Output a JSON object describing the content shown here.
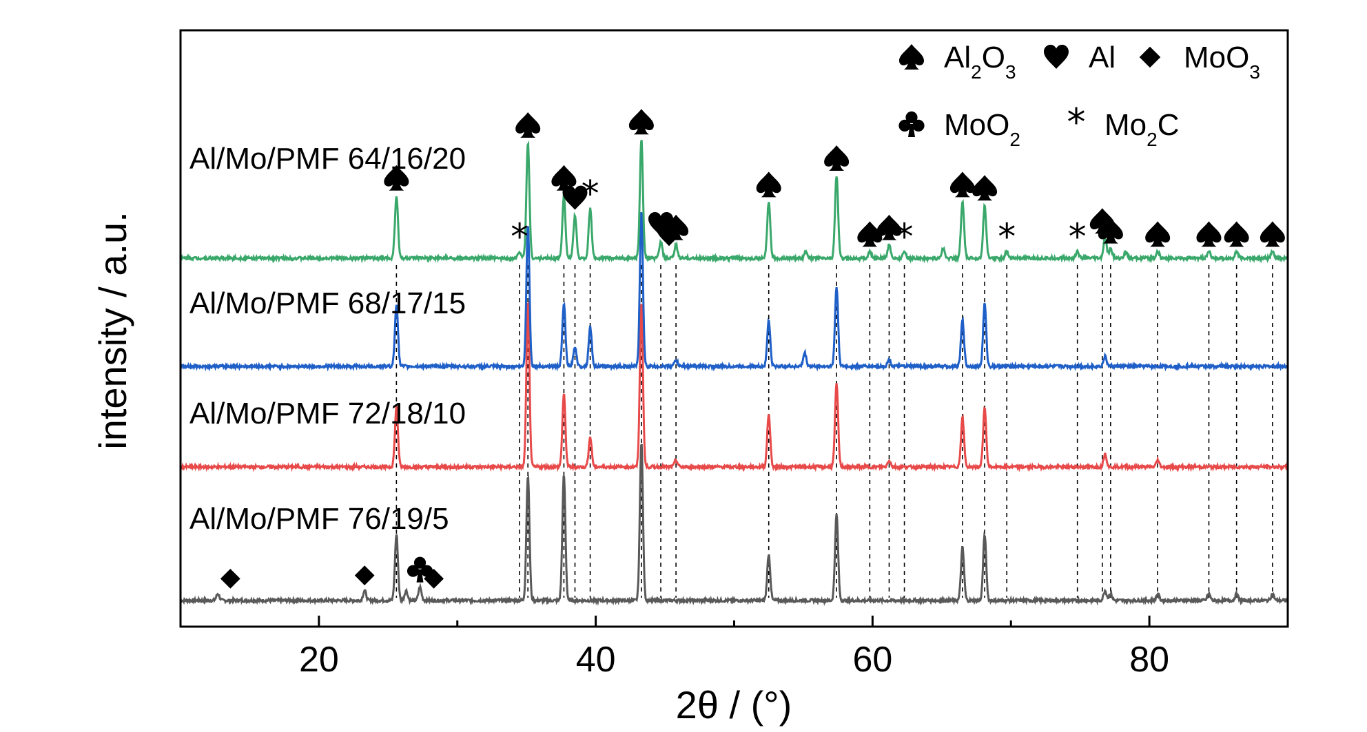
{
  "chart_data": {
    "type": "line",
    "title": "",
    "xlabel": "2θ / (°)",
    "ylabel": "intensity / a.u.",
    "xlim": [
      10,
      90
    ],
    "xticks": [
      20,
      40,
      60,
      80
    ],
    "grid": false,
    "legend": {
      "placement": "top-right",
      "entries": [
        {
          "symbol": "spade",
          "label": "Al2O3"
        },
        {
          "symbol": "heart",
          "label": "Al"
        },
        {
          "symbol": "diamond",
          "label": "MoO3"
        },
        {
          "symbol": "club",
          "label": "MoO2"
        },
        {
          "symbol": "asterisk",
          "label": "Mo2C"
        }
      ]
    },
    "series": [
      {
        "name": "Al/Mo/PMF 76/19/5",
        "color": "#595959",
        "peaks": [
          {
            "x": 12.7,
            "h": 0.02
          },
          {
            "x": 23.3,
            "h": 0.03
          },
          {
            "x": 25.6,
            "h": 0.2
          },
          {
            "x": 26.3,
            "h": 0.03
          },
          {
            "x": 27.3,
            "h": 0.04
          },
          {
            "x": 35.1,
            "h": 0.38
          },
          {
            "x": 37.7,
            "h": 0.38
          },
          {
            "x": 43.3,
            "h": 0.48
          },
          {
            "x": 52.5,
            "h": 0.14
          },
          {
            "x": 57.4,
            "h": 0.26
          },
          {
            "x": 66.5,
            "h": 0.16
          },
          {
            "x": 68.1,
            "h": 0.2
          },
          {
            "x": 76.8,
            "h": 0.03
          },
          {
            "x": 77.2,
            "h": 0.02
          },
          {
            "x": 80.6,
            "h": 0.02
          },
          {
            "x": 84.3,
            "h": 0.02
          },
          {
            "x": 86.3,
            "h": 0.02
          },
          {
            "x": 88.9,
            "h": 0.02
          }
        ]
      },
      {
        "name": "Al/Mo/PMF 72/18/10",
        "color": "#e84a4a",
        "peaks": [
          {
            "x": 25.6,
            "h": 0.18
          },
          {
            "x": 35.1,
            "h": 0.5
          },
          {
            "x": 37.7,
            "h": 0.22
          },
          {
            "x": 39.6,
            "h": 0.09
          },
          {
            "x": 43.3,
            "h": 0.5
          },
          {
            "x": 45.8,
            "h": 0.02
          },
          {
            "x": 52.5,
            "h": 0.16
          },
          {
            "x": 57.4,
            "h": 0.25
          },
          {
            "x": 61.2,
            "h": 0.02
          },
          {
            "x": 66.5,
            "h": 0.15
          },
          {
            "x": 68.1,
            "h": 0.18
          },
          {
            "x": 76.8,
            "h": 0.04
          },
          {
            "x": 80.6,
            "h": 0.02
          }
        ]
      },
      {
        "name": "Al/Mo/PMF 68/17/15",
        "color": "#1f5fc8",
        "peaks": [
          {
            "x": 25.6,
            "h": 0.19
          },
          {
            "x": 35.1,
            "h": 0.43
          },
          {
            "x": 37.7,
            "h": 0.19
          },
          {
            "x": 38.5,
            "h": 0.06
          },
          {
            "x": 39.6,
            "h": 0.12
          },
          {
            "x": 43.3,
            "h": 0.47
          },
          {
            "x": 45.8,
            "h": 0.02
          },
          {
            "x": 52.5,
            "h": 0.14
          },
          {
            "x": 55.1,
            "h": 0.04
          },
          {
            "x": 57.4,
            "h": 0.24
          },
          {
            "x": 61.2,
            "h": 0.02
          },
          {
            "x": 66.5,
            "h": 0.14
          },
          {
            "x": 68.1,
            "h": 0.19
          },
          {
            "x": 76.8,
            "h": 0.03
          }
        ]
      },
      {
        "name": "Al/Mo/PMF 64/16/20",
        "color": "#3aa86b",
        "peaks": [
          {
            "x": 25.6,
            "h": 0.19
          },
          {
            "x": 34.5,
            "h": 0.02
          },
          {
            "x": 35.1,
            "h": 0.35
          },
          {
            "x": 37.7,
            "h": 0.19
          },
          {
            "x": 38.5,
            "h": 0.13
          },
          {
            "x": 39.6,
            "h": 0.15
          },
          {
            "x": 43.3,
            "h": 0.36
          },
          {
            "x": 44.7,
            "h": 0.05
          },
          {
            "x": 45.8,
            "h": 0.04
          },
          {
            "x": 52.5,
            "h": 0.17
          },
          {
            "x": 55.2,
            "h": 0.02
          },
          {
            "x": 57.4,
            "h": 0.25
          },
          {
            "x": 59.8,
            "h": 0.02
          },
          {
            "x": 61.2,
            "h": 0.04
          },
          {
            "x": 62.3,
            "h": 0.02
          },
          {
            "x": 65.1,
            "h": 0.03
          },
          {
            "x": 66.5,
            "h": 0.17
          },
          {
            "x": 68.1,
            "h": 0.16
          },
          {
            "x": 69.7,
            "h": 0.02
          },
          {
            "x": 74.8,
            "h": 0.02
          },
          {
            "x": 76.8,
            "h": 0.06
          },
          {
            "x": 77.2,
            "h": 0.03
          },
          {
            "x": 78.3,
            "h": 0.02
          },
          {
            "x": 80.6,
            "h": 0.02
          },
          {
            "x": 84.3,
            "h": 0.02
          },
          {
            "x": 86.3,
            "h": 0.02
          },
          {
            "x": 88.9,
            "h": 0.02
          }
        ]
      }
    ],
    "reference_lines": [
      25.6,
      34.5,
      35.1,
      37.7,
      38.5,
      39.6,
      43.3,
      44.7,
      45.8,
      52.5,
      57.4,
      59.8,
      61.2,
      62.3,
      66.5,
      68.1,
      69.7,
      74.8,
      76.6,
      77.2,
      80.6,
      84.3,
      86.3,
      88.9
    ],
    "phase_markers": [
      {
        "symbol": "spade",
        "x": 25.6,
        "series": "Al/Mo/PMF 64/16/20"
      },
      {
        "symbol": "spade",
        "x": 35.1,
        "series": "Al/Mo/PMF 64/16/20"
      },
      {
        "symbol": "asterisk",
        "x": 34.5,
        "series": "Al/Mo/PMF 64/16/20"
      },
      {
        "symbol": "spade",
        "x": 37.7,
        "series": "Al/Mo/PMF 64/16/20"
      },
      {
        "symbol": "heart",
        "x": 38.5,
        "series": "Al/Mo/PMF 64/16/20"
      },
      {
        "symbol": "asterisk",
        "x": 39.6,
        "series": "Al/Mo/PMF 64/16/20"
      },
      {
        "symbol": "spade",
        "x": 43.3,
        "series": "Al/Mo/PMF 64/16/20"
      },
      {
        "symbol": "heart",
        "x": 44.7,
        "series": "Al/Mo/PMF 64/16/20"
      },
      {
        "symbol": "heart",
        "x": 45.3,
        "series": "Al/Mo/PMF 64/16/20"
      },
      {
        "symbol": "spade",
        "x": 45.8,
        "series": "Al/Mo/PMF 64/16/20"
      },
      {
        "symbol": "spade",
        "x": 52.5,
        "series": "Al/Mo/PMF 64/16/20"
      },
      {
        "symbol": "spade",
        "x": 57.4,
        "series": "Al/Mo/PMF 64/16/20"
      },
      {
        "symbol": "spade",
        "x": 59.8,
        "series": "Al/Mo/PMF 64/16/20"
      },
      {
        "symbol": "spade",
        "x": 61.2,
        "series": "Al/Mo/PMF 64/16/20"
      },
      {
        "symbol": "asterisk",
        "x": 62.3,
        "series": "Al/Mo/PMF 64/16/20"
      },
      {
        "symbol": "spade",
        "x": 66.5,
        "series": "Al/Mo/PMF 64/16/20"
      },
      {
        "symbol": "spade",
        "x": 68.1,
        "series": "Al/Mo/PMF 64/16/20"
      },
      {
        "symbol": "asterisk",
        "x": 69.7,
        "series": "Al/Mo/PMF 64/16/20"
      },
      {
        "symbol": "asterisk",
        "x": 74.8,
        "series": "Al/Mo/PMF 64/16/20"
      },
      {
        "symbol": "spade",
        "x": 76.6,
        "series": "Al/Mo/PMF 64/16/20"
      },
      {
        "symbol": "spade",
        "x": 77.2,
        "series": "Al/Mo/PMF 64/16/20"
      },
      {
        "symbol": "spade",
        "x": 80.6,
        "series": "Al/Mo/PMF 64/16/20"
      },
      {
        "symbol": "spade",
        "x": 84.3,
        "series": "Al/Mo/PMF 64/16/20"
      },
      {
        "symbol": "spade",
        "x": 86.3,
        "series": "Al/Mo/PMF 64/16/20"
      },
      {
        "symbol": "spade",
        "x": 88.9,
        "series": "Al/Mo/PMF 64/16/20"
      },
      {
        "symbol": "diamond",
        "x": 13.6,
        "series": "Al/Mo/PMF 76/19/5"
      },
      {
        "symbol": "diamond",
        "x": 23.3,
        "series": "Al/Mo/PMF 76/19/5"
      },
      {
        "symbol": "club",
        "x": 27.3,
        "series": "Al/Mo/PMF 76/19/5"
      },
      {
        "symbol": "diamond",
        "x": 28.3,
        "series": "Al/Mo/PMF 76/19/5"
      }
    ]
  }
}
